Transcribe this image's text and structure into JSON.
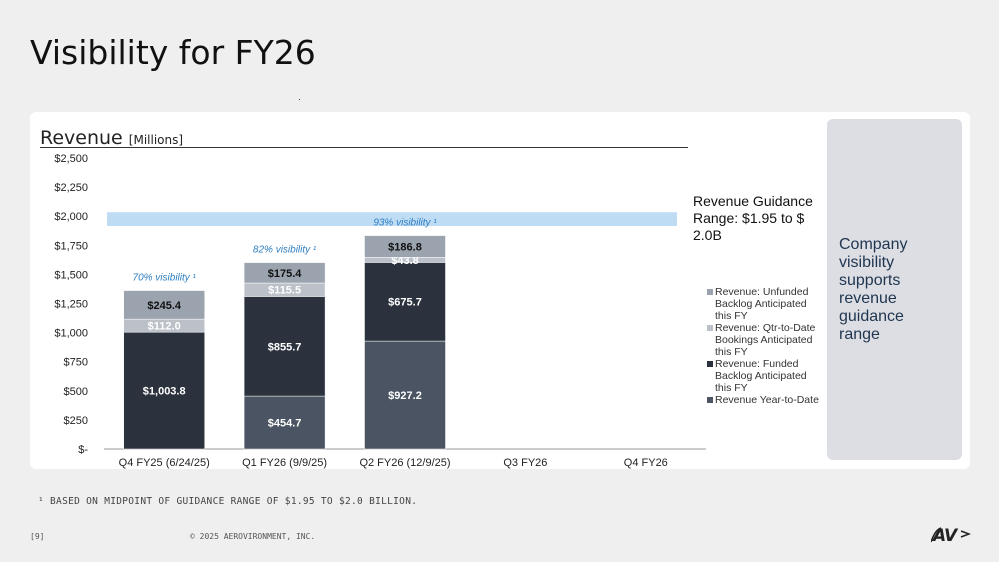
{
  "page": {
    "title": "Visibility for FY26",
    "footnote": "¹ BASED ON MIDPOINT OF GUIDANCE RANGE OF $1.95 TO $2.0 BILLION.",
    "page_number": "[9]",
    "copyright": "© 2025 AEROVIRONMENT, INC.",
    "logo_text": "AV"
  },
  "side_box": {
    "text": "Company visibility supports revenue guidance range"
  },
  "chart_data": {
    "type": "bar",
    "title": "Revenue",
    "title_unit": "[Millions]",
    "categories": [
      "Q4 FY25 (6/24/25)",
      "Q1 FY26 (9/9/25)",
      "Q2 FY26 (12/9/25)",
      "Q3 FY26",
      "Q4 FY26"
    ],
    "ylim": [
      0,
      2500
    ],
    "yticks": [
      0,
      250,
      500,
      750,
      1000,
      1250,
      1500,
      1750,
      2000,
      2250,
      2500
    ],
    "ytick_labels": [
      "$-",
      "$250",
      "$500",
      "$750",
      "$1,000",
      "$1,250",
      "$1,500",
      "$1,750",
      "$2,000",
      "$2,250",
      "$2,500"
    ],
    "stacked": true,
    "series": [
      {
        "name": "Revenue Year-to-Date",
        "color": "#4a5462",
        "values": [
          null,
          454.7,
          927.2,
          null,
          null
        ],
        "labels": [
          "",
          "$454.7",
          "$927.2",
          "",
          ""
        ]
      },
      {
        "name": "Revenue: Funded Backlog Anticipated this FY",
        "color": "#2c323d",
        "values": [
          1003.8,
          855.7,
          675.7,
          null,
          null
        ],
        "labels": [
          "$1,003.8",
          "$855.7",
          "$675.7",
          "",
          ""
        ]
      },
      {
        "name": "Revenue: Qtr-to-Date Bookings Anticipated this FY",
        "color": "#bcc1c9",
        "values": [
          112.0,
          115.5,
          43.8,
          null,
          null
        ],
        "labels": [
          "$112.0",
          "$115.5",
          "$43.8",
          "",
          ""
        ]
      },
      {
        "name": "Revenue: Unfunded Backlog Anticipated this FY",
        "color": "#9aa3ae",
        "values": [
          245.4,
          175.4,
          186.8,
          null,
          null
        ],
        "labels": [
          "$245.4",
          "$175.4",
          "$186.8",
          "",
          ""
        ]
      }
    ],
    "legend_order": [
      3,
      2,
      1,
      0
    ],
    "visibility_labels": [
      "70% visibility ¹",
      "82% visibility ¹",
      "93% visibility ¹",
      "",
      ""
    ],
    "guidance_band": {
      "low": 1950,
      "high": 2000,
      "color": "#bfdcf5",
      "label": "Revenue Guidance Range: $1.95  to $ 2.0B"
    },
    "colors": {
      "visibility_text": "#2f7fc1",
      "axis": "#999999"
    }
  }
}
